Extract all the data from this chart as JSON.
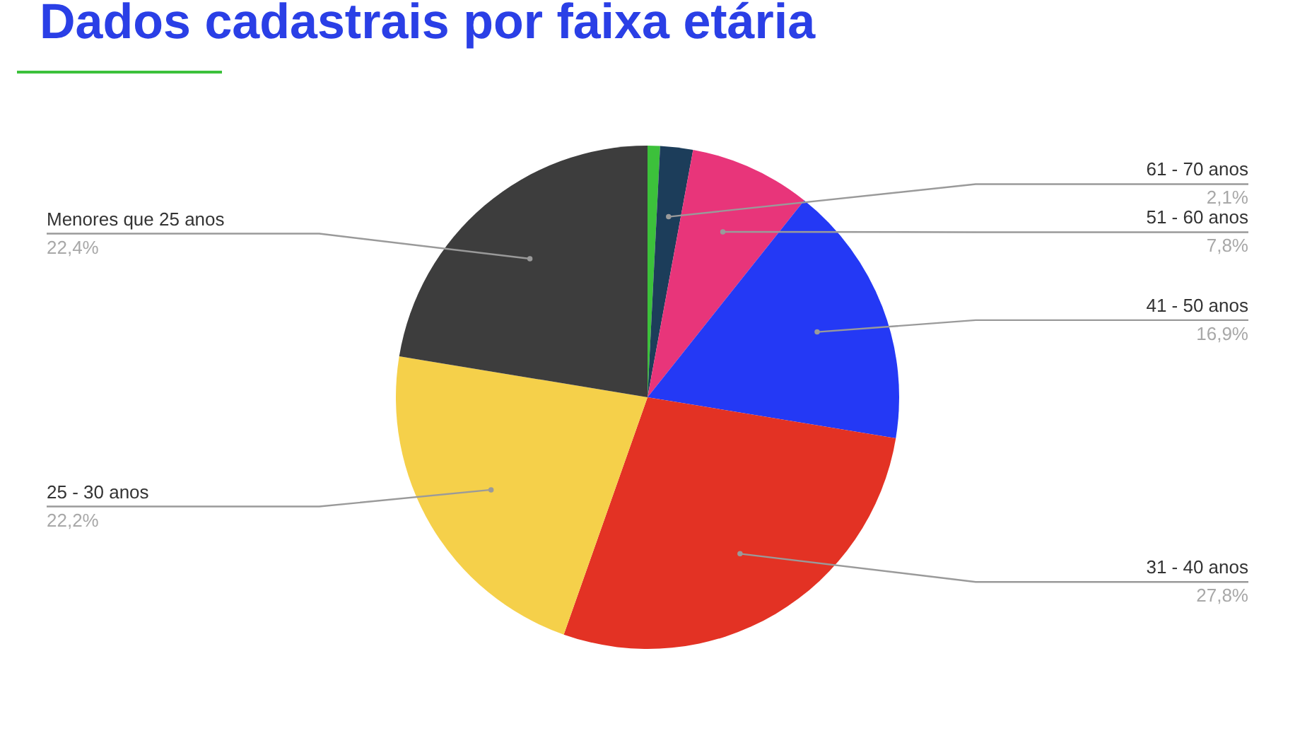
{
  "chart_data": {
    "type": "pie",
    "title": "Dados cadastrais por faixa etária",
    "categories": [
      null,
      "61 - 70 anos",
      "51 - 60 anos",
      "41 - 50 anos",
      "31 - 40 anos",
      "25 - 30 anos",
      "Menores que 25 anos"
    ],
    "values": [
      0.8,
      2.1,
      7.8,
      16.9,
      27.8,
      22.2,
      22.4
    ],
    "value_labels": [
      null,
      "2,1%",
      "7,8%",
      "16,9%",
      "27,8%",
      "22,2%",
      "22,4%"
    ],
    "colors": [
      "#3cc13b",
      "#1c3d5a",
      "#e8357a",
      "#2439f5",
      "#e33224",
      "#f5d04a",
      "#3d3d3d"
    ]
  }
}
